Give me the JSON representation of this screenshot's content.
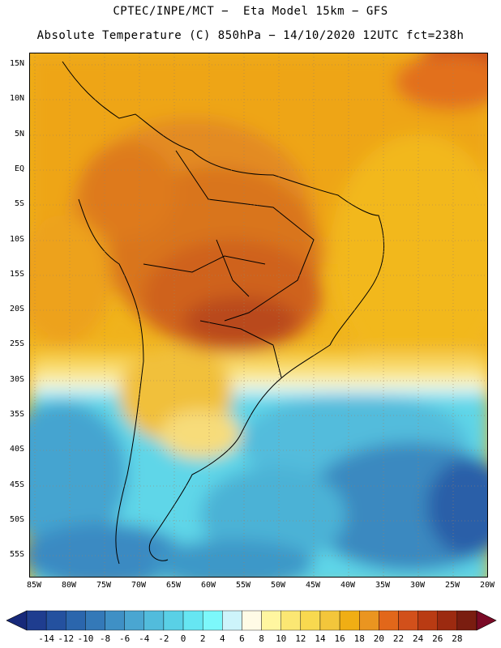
{
  "title_line1": "CPTEC/INPE/MCT −  Eta Model 15km − GFS",
  "title_line2": "Absolute Temperature (C) 850hPa − 14/10/2020 12UTC fct=238h",
  "lat_labels": [
    "15N",
    "10N",
    "5N",
    "EQ",
    "5S",
    "10S",
    "15S",
    "20S",
    "25S",
    "30S",
    "35S",
    "40S",
    "45S",
    "50S",
    "55S"
  ],
  "lon_labels": [
    "85W",
    "80W",
    "75W",
    "70W",
    "65W",
    "60W",
    "55W",
    "50W",
    "45W",
    "40W",
    "35W",
    "30W",
    "25W",
    "20W"
  ],
  "colorbar": {
    "labels": [
      "-14",
      "-12",
      "-10",
      "-8",
      "-6",
      "-4",
      "-2",
      "0",
      "2",
      "4",
      "6",
      "8",
      "10",
      "12",
      "14",
      "16",
      "18",
      "20",
      "22",
      "24",
      "26",
      "28"
    ],
    "colors": [
      "#1f3d8f",
      "#24519f",
      "#2b66ad",
      "#3479b8",
      "#3f90c5",
      "#4aa6d1",
      "#52bcdc",
      "#59d0e6",
      "#66e6f2",
      "#7cf8fb",
      "#cdf4fb",
      "#fffbe6",
      "#fff6a0",
      "#fbe773",
      "#f8d94f",
      "#f3c63b",
      "#f0ae14",
      "#ea9520",
      "#e2671a",
      "#d2501b",
      "#b93b13",
      "#9c2a10",
      "#7a1d10"
    ],
    "end_low_color": "#17297a",
    "end_high_color": "#7a0a26"
  }
}
